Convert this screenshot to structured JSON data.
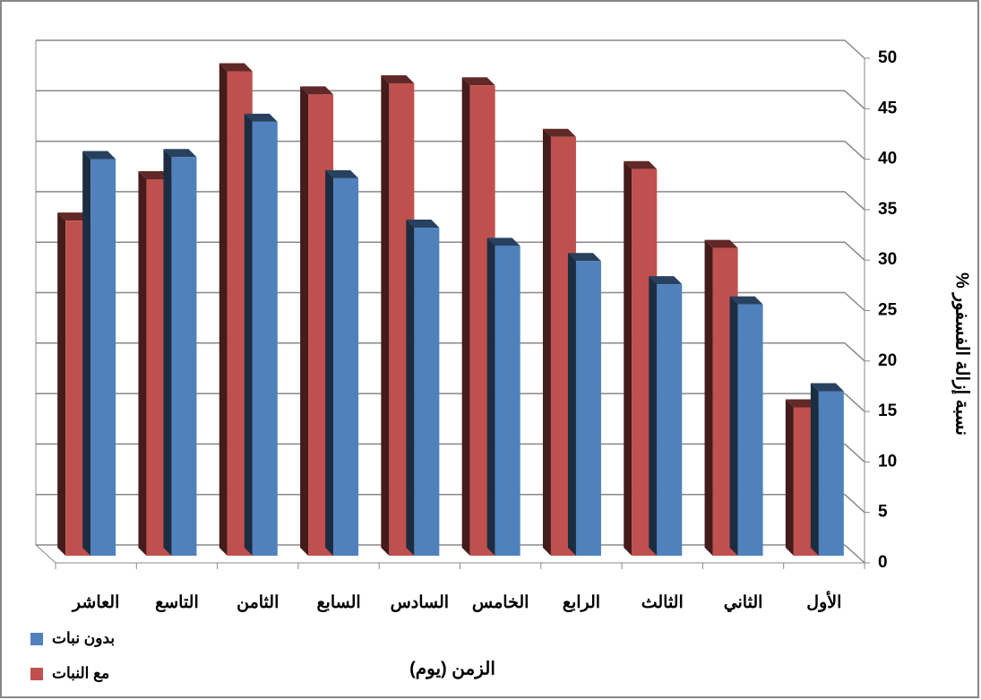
{
  "chart_data": {
    "type": "bar3d",
    "x_label": "الزمن (يوم)",
    "y_label": "نسبة إزالة الفسفور %",
    "categories": [
      "الأول",
      "الثاني",
      "الثالث",
      "الرابع",
      "الخامس",
      "السادس",
      "السابع",
      "الثامن",
      "التاسع",
      "العاشر"
    ],
    "reverse_x": true,
    "series": [
      {
        "name": "مع النبات",
        "color": "#c0504d",
        "values": [
          14.7,
          30.5,
          38.3,
          41.5,
          46.6,
          46.8,
          45.7,
          48,
          37.3,
          33.2
        ]
      },
      {
        "name": "بدون نبات",
        "color": "#4f81bd",
        "values": [
          16.3,
          24.9,
          26.9,
          29.2,
          30.7,
          32.5,
          37.4,
          43,
          39.5,
          39.3
        ]
      }
    ],
    "ylim": [
      0,
      50
    ],
    "yticks": [
      0,
      5,
      10,
      15,
      20,
      25,
      30,
      35,
      40,
      45,
      50
    ],
    "grid": true
  }
}
